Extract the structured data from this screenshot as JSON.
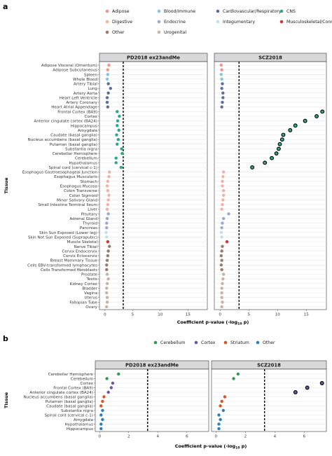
{
  "figure": {
    "panel_a_letter": "a",
    "panel_b_letter": "b"
  },
  "chart_data": [
    {
      "type": "scatter",
      "panel": "a",
      "xlabel": "Coefficient p-value (-log10 p)",
      "ylabel": "Tissue",
      "xlim": [
        -1,
        18.5
      ],
      "xticks": [
        0,
        5,
        10,
        15
      ],
      "threshold": 3.3,
      "facets": [
        "PD2018 ex23andMe",
        "SCZ2018"
      ],
      "legend": [
        {
          "name": "Adipose",
          "color": "#F1948A"
        },
        {
          "name": "Blood/Immune",
          "color": "#7FC8DC"
        },
        {
          "name": "Cardiovascular/Respiratory",
          "color": "#5C6D9E"
        },
        {
          "name": "CNS",
          "color": "#2AA88A"
        },
        {
          "name": "Digestive",
          "color": "#F2B2A3"
        },
        {
          "name": "Endocrine",
          "color": "#9AA8D6"
        },
        {
          "name": "Integumentary",
          "color": "#BFE0EA"
        },
        {
          "name": "Musculoskeletal/Connective",
          "color": "#D9352F"
        },
        {
          "name": "Other",
          "color": "#9C7A6A"
        },
        {
          "name": "Urogenital",
          "color": "#C9B2A4"
        }
      ],
      "categories": [
        "Adipose Visceral (Omentum)",
        "Adipose Subcutaneous",
        "Spleen",
        "Whole Blood",
        "Artery Tibial",
        "Lung",
        "Artery Aorta",
        "Heart Left Ventricle",
        "Artery Coronary",
        "Heart Atrial Appendage",
        "Frontal Cortex (BA9)",
        "Cortex",
        "Anterior cingulate cortex (BA24)",
        "Hippocampus",
        "Amygdala",
        "Caudate (basal ganglia)",
        "Nucleus accumbens (basal ganglia)",
        "Putamen (basal ganglia)",
        "Substantia nigra",
        "Cerebellar Hemisphere",
        "Cerebellum",
        "Hypothalamus",
        "Spinal cord (cervical c-1)",
        "Esophagus Gastroesophageal Junction",
        "Esophagus Muscularis",
        "Stomach",
        "Esophagus Mucosa",
        "Colon Transverse",
        "Colon Sigmoid",
        "Minor Salivary Gland",
        "Small Intestine Terminal Ileum",
        "Liver",
        "Pituitary",
        "Adrenal Gland",
        "Thyroid",
        "Pancreas",
        "Skin Sun Exposed (Lower leg)",
        "Skin Not Sun Exposed (Suprapubic)",
        "Muscle Skeletal",
        "Nerve Tibial",
        "Cervix Endocervix",
        "Cervix Ectocervix",
        "Breast Mammary Tissue",
        "Cells EBV-transformed lymphocytes",
        "Cells Transformed fibroblasts",
        "Prostate",
        "Testis",
        "Kidney Cortex",
        "Bladder",
        "Vagina",
        "Uterus",
        "Fallopian Tube",
        "Ovary"
      ],
      "groups": [
        "Adipose",
        "Adipose",
        "Blood/Immune",
        "Blood/Immune",
        "Cardiovascular/Respiratory",
        "Cardiovascular/Respiratory",
        "Cardiovascular/Respiratory",
        "Cardiovascular/Respiratory",
        "Cardiovascular/Respiratory",
        "Cardiovascular/Respiratory",
        "CNS",
        "CNS",
        "CNS",
        "CNS",
        "CNS",
        "CNS",
        "CNS",
        "CNS",
        "CNS",
        "CNS",
        "CNS",
        "CNS",
        "CNS",
        "Digestive",
        "Digestive",
        "Digestive",
        "Digestive",
        "Digestive",
        "Digestive",
        "Digestive",
        "Digestive",
        "Digestive",
        "Endocrine",
        "Endocrine",
        "Endocrine",
        "Endocrine",
        "Integumentary",
        "Integumentary",
        "Musculoskeletal/Connective",
        "Other",
        "Other",
        "Other",
        "Other",
        "Other",
        "Other",
        "Urogenital",
        "Urogenital",
        "Urogenital",
        "Urogenital",
        "Urogenital",
        "Urogenital",
        "Urogenital",
        "Urogenital"
      ],
      "series": [
        {
          "name": "PD2018 ex23andMe",
          "values": [
            0.7,
            0.5,
            0.5,
            0.4,
            0.6,
            1.0,
            0.6,
            0.4,
            0.4,
            0.5,
            2.2,
            2.6,
            2.3,
            2.2,
            2.5,
            2.1,
            2.4,
            2.2,
            3.0,
            3.1,
            2.0,
            2.0,
            2.9,
            0.8,
            0.7,
            0.5,
            0.4,
            0.5,
            0.7,
            0.6,
            0.5,
            0.4,
            0.6,
            0.4,
            0.3,
            0.3,
            0.2,
            0.3,
            0.5,
            0.8,
            0.6,
            0.5,
            0.4,
            0.3,
            0.3,
            0.4,
            0.6,
            0.4,
            0.3,
            0.3,
            0.4,
            0.4,
            0.3
          ],
          "significant": [
            false,
            false,
            false,
            false,
            false,
            false,
            false,
            false,
            false,
            false,
            false,
            false,
            false,
            false,
            false,
            false,
            false,
            false,
            false,
            false,
            false,
            false,
            false,
            false,
            false,
            false,
            false,
            false,
            false,
            false,
            false,
            false,
            false,
            false,
            false,
            false,
            false,
            false,
            false,
            false,
            false,
            false,
            false,
            false,
            false,
            false,
            false,
            false,
            false,
            false,
            false,
            false,
            false
          ]
        },
        {
          "name": "SCZ2018",
          "values": [
            0.2,
            0.3,
            0.2,
            0.3,
            0.4,
            0.3,
            0.5,
            0.5,
            0.4,
            0.3,
            17.8,
            16.8,
            14.8,
            13.1,
            12.2,
            11.0,
            10.8,
            10.4,
            10.2,
            9.8,
            9.0,
            7.8,
            5.6,
            0.6,
            0.5,
            0.4,
            0.4,
            0.6,
            0.6,
            0.5,
            0.4,
            0.3,
            1.5,
            0.6,
            0.4,
            0.3,
            0.2,
            0.3,
            1.2,
            0.4,
            0.3,
            0.2,
            0.3,
            0.2,
            0.3,
            0.6,
            0.5,
            0.4,
            0.3,
            0.3,
            0.3,
            0.4,
            0.3
          ],
          "significant": [
            false,
            false,
            false,
            false,
            false,
            false,
            false,
            false,
            false,
            false,
            true,
            true,
            true,
            true,
            true,
            true,
            true,
            true,
            true,
            true,
            true,
            true,
            true,
            false,
            false,
            false,
            false,
            false,
            false,
            false,
            false,
            false,
            false,
            false,
            false,
            false,
            false,
            false,
            false,
            false,
            false,
            false,
            false,
            false,
            false,
            false,
            false,
            false,
            false,
            false,
            false,
            false,
            false
          ]
        }
      ]
    },
    {
      "type": "scatter",
      "panel": "b",
      "xlabel": "Coefficient p-value (-log10 p)",
      "ylabel": "Tissue",
      "xlim": [
        -0.3,
        7.5
      ],
      "xticks": [
        0,
        2,
        4,
        6
      ],
      "threshold": 3.3,
      "facets": [
        "PD2018 ex23andMe",
        "SCZ2018"
      ],
      "legend": [
        {
          "name": "Cerebellum",
          "color": "#2E9A4E"
        },
        {
          "name": "Cortex",
          "color": "#6A55A5"
        },
        {
          "name": "Striatum",
          "color": "#D9541E"
        },
        {
          "name": "Other",
          "color": "#2B7FBF"
        }
      ],
      "categories": [
        "Cerebellar Hemisphere",
        "Cerebellum",
        "Cortex",
        "Frontal Cortex (BA9)",
        "Anterior cingulate cortex (BA24)",
        "Nucleus accumbens (basal ganglia)",
        "Putamen (basal ganglia)",
        "Caudate (basal ganglia)",
        "Substantia nigra",
        "Spinal cord (cervical c-1)",
        "Amygdala",
        "Hypothalamus",
        "Hippocampus"
      ],
      "groups": [
        "Cerebellum",
        "Cerebellum",
        "Cortex",
        "Cortex",
        "Cortex",
        "Striatum",
        "Striatum",
        "Striatum",
        "Other",
        "Other",
        "Other",
        "Other",
        "Other"
      ],
      "series": [
        {
          "name": "PD2018 ex23andMe",
          "values": [
            1.3,
            0.5,
            0.9,
            0.8,
            0.6,
            0.3,
            0.2,
            0.1,
            0.2,
            0.1,
            0.2,
            0.1,
            0.1
          ],
          "significant": [
            false,
            false,
            false,
            false,
            false,
            false,
            false,
            false,
            false,
            false,
            false,
            false,
            false
          ]
        },
        {
          "name": "SCZ2018",
          "values": [
            1.5,
            1.2,
            7.2,
            6.2,
            5.4,
            0.6,
            0.4,
            0.3,
            0.5,
            0.2,
            0.3,
            0.2,
            0.2
          ],
          "significant": [
            false,
            false,
            true,
            true,
            true,
            false,
            false,
            false,
            false,
            false,
            false,
            false,
            false
          ]
        }
      ]
    }
  ]
}
